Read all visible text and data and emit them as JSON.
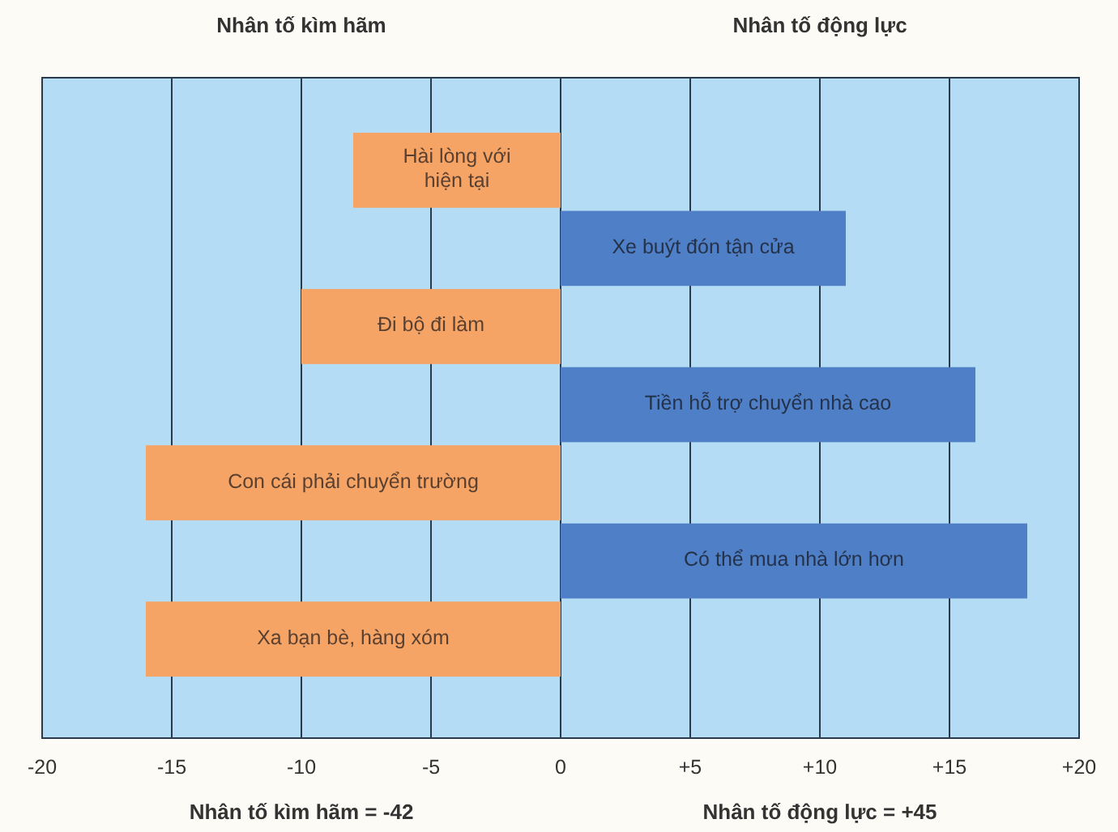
{
  "chart_data": {
    "type": "bar",
    "orientation": "horizontal",
    "categories": [
      "Hài lòng với hiện tại",
      "Xe buýt đón tận cửa",
      "Đi bộ đi làm",
      "Tiền hỗ trợ chuyển nhà cao",
      "Con cái phải chuyển trường",
      "Có thể mua nhà lớn hơn",
      "Xa bạn bè, hàng xóm"
    ],
    "values": [
      -8,
      11,
      -10,
      16,
      -16,
      18,
      -16
    ],
    "colors": [
      "#f6a466",
      "#4f7fc6",
      "#f6a466",
      "#4f7fc6",
      "#f6a466",
      "#4f7fc6",
      "#f6a466"
    ],
    "xlim": [
      -20,
      20
    ],
    "xticks": [
      -20,
      -15,
      -10,
      -5,
      0,
      {
        "value": 5,
        "label": "+5"
      },
      {
        "value": 10,
        "label": "+10"
      },
      {
        "value": 15,
        "label": "+15"
      },
      {
        "value": 20,
        "label": "+20"
      }
    ],
    "grid": "x",
    "annotations": [
      "Nhân tố kìm hãm",
      "Nhân tố động lực",
      "Nhân tố kìm hãm = -42",
      "Nhân tố động lực = +45"
    ]
  }
}
